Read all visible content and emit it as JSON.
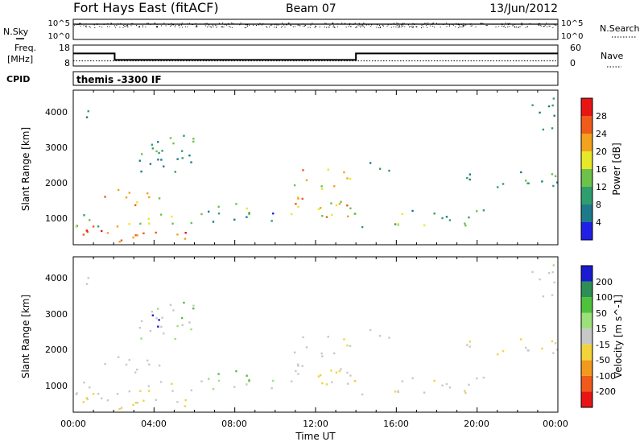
{
  "header": {
    "station": "Fort Hays East (fitACF)",
    "beam": "Beam 07",
    "date": "13/Jun/2012"
  },
  "noise_panel": {
    "left_label": "N.Sky",
    "right_label": "N.Search",
    "left_ticks": [
      "10^5",
      "10^0"
    ],
    "right_ticks": [
      "10^5",
      "10^0"
    ]
  },
  "freq_panel": {
    "left_label_line1": "Freq.",
    "left_label_line2": "[MHz]",
    "right_label": "Nave",
    "left_ticks": [
      "18",
      "8"
    ],
    "right_ticks": [
      "60",
      "0"
    ],
    "freq_steps": [
      {
        "t": 0.0,
        "mhz": 14.5
      },
      {
        "t": 2.05,
        "mhz": 11.2
      },
      {
        "t": 14.0,
        "mhz": 14.5
      },
      {
        "t": 24.0,
        "mhz": 14.5
      }
    ],
    "nave_level": 16
  },
  "cpid": {
    "label": "CPID",
    "value": "themis -3300 IF"
  },
  "power_panel": {
    "ylabel": "Slant Range [km]",
    "yticks": [
      "1000",
      "2000",
      "3000",
      "4000"
    ],
    "colorbar_title": "Power [dB]",
    "colorbar_ticks": [
      "4",
      "8",
      "12",
      "16",
      "20",
      "24",
      "28"
    ],
    "colors": [
      "#1f1fe6",
      "#1d7a8a",
      "#2f9e6e",
      "#6cc24a",
      "#e8e82a",
      "#f2a21d",
      "#f05a1a",
      "#e81515"
    ]
  },
  "velocity_panel": {
    "ylabel": "Slant Range [km]",
    "yticks": [
      "1000",
      "2000",
      "3000",
      "4000"
    ],
    "colorbar_title": "Velocity [m s^-1]",
    "colorbar_ticks": [
      "200",
      "100",
      "50",
      "15",
      "-15",
      "-50",
      "-100",
      "-200"
    ],
    "colors": [
      "#1a1ad0",
      "#2d8f55",
      "#4fc23c",
      "#9ce07a",
      "#c8c8c8",
      "#f2d43a",
      "#f29a1d",
      "#f05a1a",
      "#e81515"
    ]
  },
  "x_axis": {
    "label": "Time UT",
    "ticks": [
      "00:00",
      "04:00",
      "08:00",
      "12:00",
      "16:00",
      "20:00",
      "00:00"
    ]
  },
  "chart_data": {
    "type": "heatmap",
    "xlabel": "Time UT",
    "ylabel": "Slant Range [km]",
    "xlim": [
      0,
      24
    ],
    "ylim": [
      180,
      4600
    ],
    "echo_regions": [
      {
        "t0": 0.0,
        "t1": 3.2,
        "r0": 280,
        "r1": 780,
        "power": 26,
        "velocity": -10
      },
      {
        "t0": 1.5,
        "t1": 5.8,
        "r0": 280,
        "r1": 620,
        "power": 24,
        "velocity": -10
      },
      {
        "t0": 0.0,
        "t1": 6.5,
        "r0": 700,
        "r1": 1100,
        "power": 14,
        "velocity": -5
      },
      {
        "t0": 6.5,
        "t1": 10.0,
        "r0": 850,
        "r1": 1250,
        "power": 8,
        "velocity": 10
      },
      {
        "t0": 7.0,
        "t1": 9.5,
        "r0": 1100,
        "r1": 1400,
        "power": 14,
        "velocity": 60
      },
      {
        "t0": 1.5,
        "t1": 4.8,
        "r0": 1300,
        "r1": 1800,
        "power": 20,
        "velocity": -5
      },
      {
        "t0": 3.0,
        "t1": 6.0,
        "r0": 2200,
        "r1": 3300,
        "power": 10,
        "velocity": 5
      },
      {
        "t0": 5.2,
        "t1": 6.0,
        "r0": 2800,
        "r1": 3500,
        "power": 12,
        "velocity": 60
      },
      {
        "t0": 3.6,
        "t1": 4.6,
        "r0": 2600,
        "r1": 3100,
        "power": 8,
        "velocity": 200
      },
      {
        "t0": 0.3,
        "t1": 1.2,
        "r0": 3700,
        "r1": 4200,
        "power": 6,
        "velocity": 5
      },
      {
        "t0": 10.5,
        "t1": 13.8,
        "r0": 900,
        "r1": 2400,
        "power": 20,
        "velocity": -10
      },
      {
        "t0": 13.8,
        "t1": 16.5,
        "r0": 700,
        "r1": 1200,
        "power": 16,
        "velocity": -5
      },
      {
        "t0": 16.5,
        "t1": 21.0,
        "r0": 750,
        "r1": 1200,
        "power": 12,
        "velocity": -5
      },
      {
        "t0": 19.0,
        "t1": 24.0,
        "r0": 1800,
        "r1": 2300,
        "power": 10,
        "velocity": -10
      },
      {
        "t0": 14.5,
        "t1": 16.0,
        "r0": 2300,
        "r1": 2700,
        "power": 6,
        "velocity": 5
      },
      {
        "t0": 22.5,
        "t1": 24.0,
        "r0": 3500,
        "r1": 4500,
        "power": 6,
        "velocity": 10
      }
    ]
  }
}
